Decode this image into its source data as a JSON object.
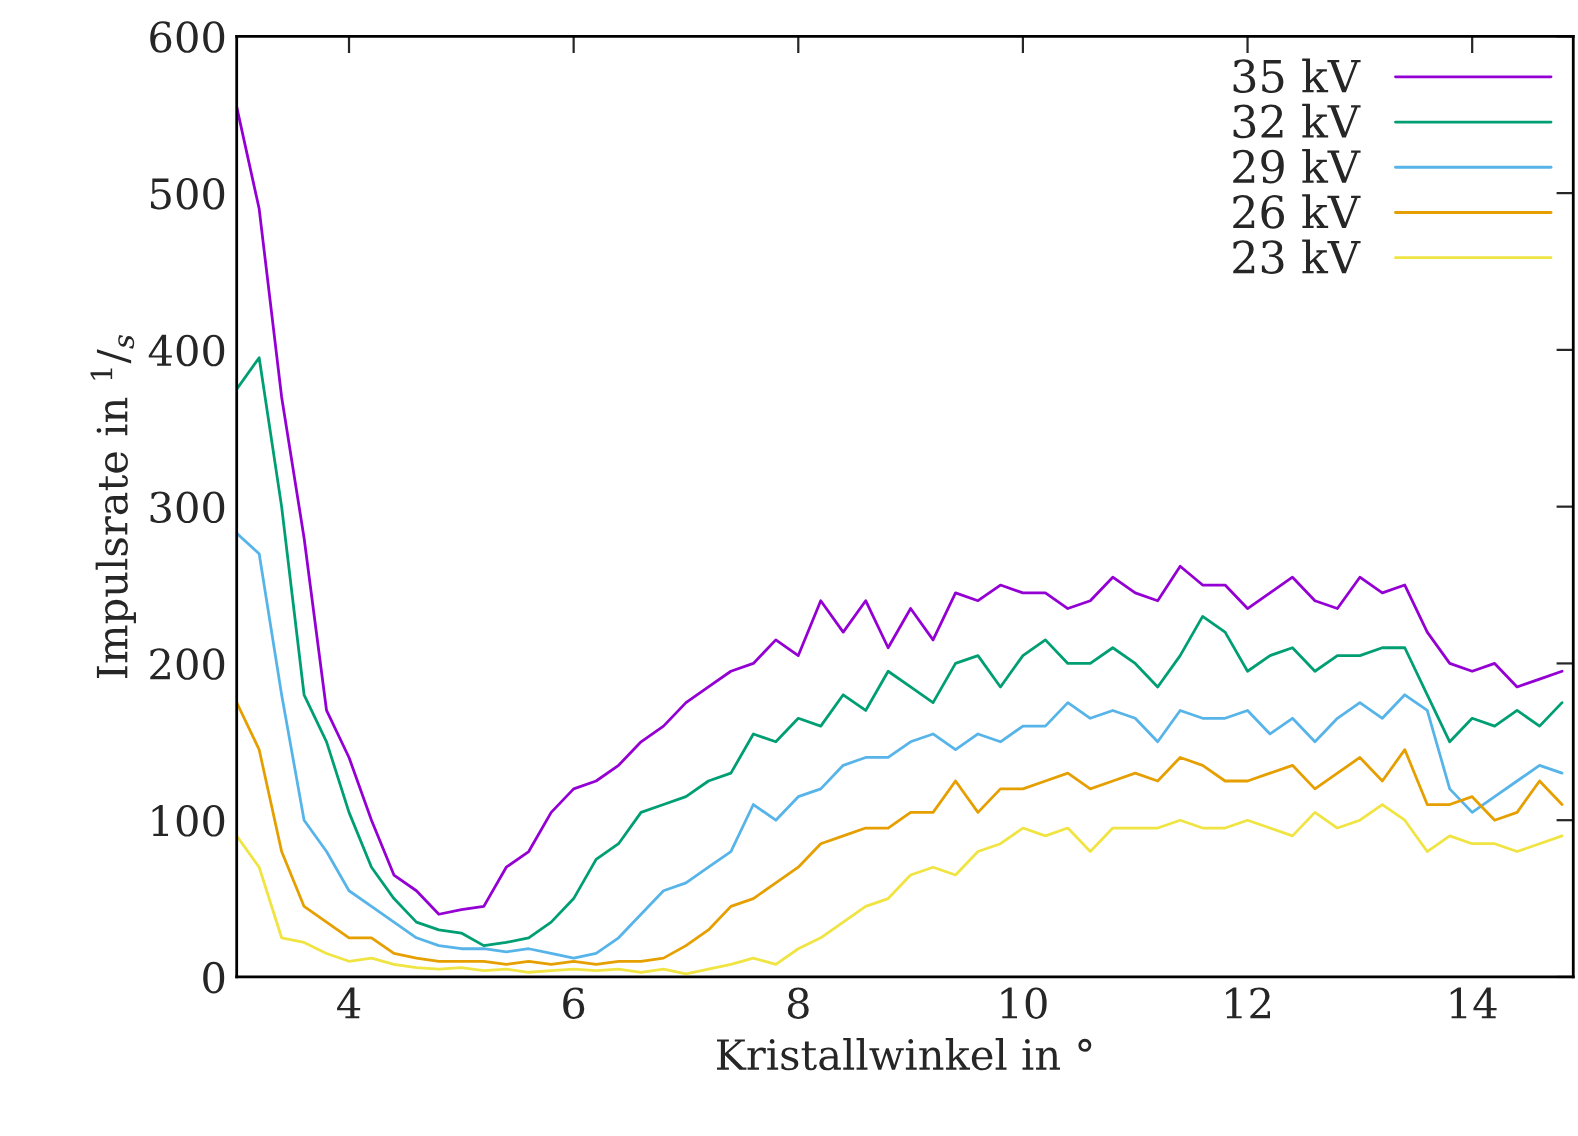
{
  "chart_data": {
    "type": "line",
    "xlabel": "Kristallwinkel in °",
    "ylabel": "Impulsrate in $^{1}$/$_{s}$",
    "x": [
      3.0,
      3.2,
      3.4,
      3.6,
      3.8,
      4.0,
      4.2,
      4.4,
      4.6,
      4.8,
      5.0,
      5.2,
      5.4,
      5.6,
      5.8,
      6.0,
      6.2,
      6.4,
      6.6,
      6.8,
      7.0,
      7.2,
      7.4,
      7.6,
      7.8,
      8.0,
      8.2,
      8.4,
      8.6,
      8.8,
      9.0,
      9.2,
      9.4,
      9.6,
      9.8,
      10.0,
      10.2,
      10.4,
      10.6,
      10.8,
      11.0,
      11.2,
      11.4,
      11.6,
      11.8,
      12.0,
      12.2,
      12.4,
      12.6,
      12.8,
      13.0,
      13.2,
      13.4,
      13.6,
      13.8,
      14.0,
      14.2,
      14.4,
      14.6,
      14.8
    ],
    "series": [
      {
        "name": "35 kV",
        "color": "#9400d3",
        "values": [
          555,
          490,
          370,
          280,
          170,
          140,
          100,
          65,
          55,
          40,
          43,
          45,
          70,
          80,
          105,
          120,
          125,
          135,
          150,
          160,
          175,
          185,
          195,
          200,
          215,
          205,
          240,
          220,
          240,
          210,
          235,
          215,
          245,
          240,
          250,
          245,
          245,
          235,
          240,
          255,
          245,
          240,
          262,
          250,
          250,
          235,
          245,
          255,
          240,
          235,
          255,
          245,
          250,
          220,
          200,
          195,
          200,
          185,
          190,
          195
        ]
      },
      {
        "name": "32 kV",
        "color": "#009e73",
        "values": [
          375,
          395,
          300,
          180,
          150,
          105,
          70,
          50,
          35,
          30,
          28,
          20,
          22,
          25,
          35,
          50,
          75,
          85,
          105,
          110,
          115,
          125,
          130,
          155,
          150,
          165,
          160,
          180,
          170,
          195,
          185,
          175,
          200,
          205,
          185,
          205,
          215,
          200,
          200,
          210,
          200,
          185,
          205,
          230,
          220,
          195,
          205,
          210,
          195,
          205,
          205,
          210,
          210,
          180,
          150,
          165,
          160,
          170,
          160,
          175
        ]
      },
      {
        "name": "29 kV",
        "color": "#56b4e9",
        "values": [
          283,
          270,
          180,
          100,
          80,
          55,
          45,
          35,
          25,
          20,
          18,
          18,
          16,
          18,
          15,
          12,
          15,
          25,
          40,
          55,
          60,
          70,
          80,
          110,
          100,
          115,
          120,
          135,
          140,
          140,
          150,
          155,
          145,
          155,
          150,
          160,
          160,
          175,
          165,
          170,
          165,
          150,
          170,
          165,
          165,
          170,
          155,
          165,
          150,
          165,
          175,
          165,
          180,
          170,
          120,
          105,
          115,
          125,
          135,
          130
        ]
      },
      {
        "name": "26 kV",
        "color": "#e69f00",
        "values": [
          175,
          145,
          80,
          45,
          35,
          25,
          25,
          15,
          12,
          10,
          10,
          10,
          8,
          10,
          8,
          10,
          8,
          10,
          10,
          12,
          20,
          30,
          45,
          50,
          60,
          70,
          85,
          90,
          95,
          95,
          105,
          105,
          125,
          105,
          120,
          120,
          125,
          130,
          120,
          125,
          130,
          125,
          140,
          135,
          125,
          125,
          130,
          135,
          120,
          130,
          140,
          125,
          145,
          110,
          110,
          115,
          100,
          105,
          125,
          110
        ]
      },
      {
        "name": "23 kV",
        "color": "#f0e442",
        "values": [
          90,
          70,
          25,
          22,
          15,
          10,
          12,
          8,
          6,
          5,
          6,
          4,
          5,
          3,
          4,
          5,
          4,
          5,
          3,
          5,
          2,
          5,
          8,
          12,
          8,
          18,
          25,
          35,
          45,
          50,
          65,
          70,
          65,
          80,
          85,
          95,
          90,
          95,
          80,
          95,
          95,
          95,
          100,
          95,
          95,
          100,
          95,
          90,
          105,
          95,
          100,
          110,
          100,
          80,
          90,
          85,
          85,
          80,
          85,
          90
        ]
      }
    ],
    "xlim": [
      3,
      14.9
    ],
    "ylim": [
      0,
      600
    ],
    "xticks": [
      4,
      6,
      8,
      10,
      12,
      14
    ],
    "yticks": [
      0,
      100,
      200,
      300,
      400,
      500,
      600
    ],
    "legend": "top right",
    "grid": false
  }
}
